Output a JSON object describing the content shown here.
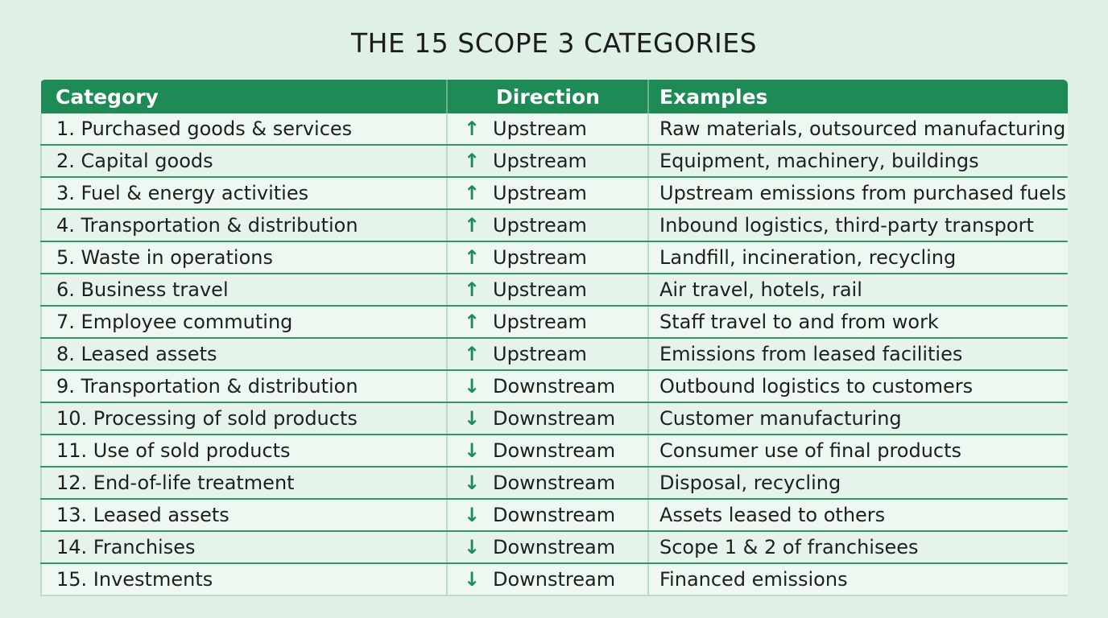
{
  "title": "THE 15 SCOPE 3 CATEGORIES",
  "colors": {
    "accent": "#1e8a55",
    "background": "#dff0e5"
  },
  "table": {
    "headers": [
      "Category",
      "Direction",
      "Examples"
    ],
    "rows": [
      {
        "category": "1. Purchased goods & services",
        "arrow": "↑",
        "arrow_icon": "arrow-up-icon",
        "direction": "Upstream",
        "examples": "Raw materials, outsourced manufacturing"
      },
      {
        "category": "2. Capital goods",
        "arrow": "↑",
        "arrow_icon": "arrow-up-icon",
        "direction": "Upstream",
        "examples": "Equipment, machinery, buildings"
      },
      {
        "category": "3. Fuel & energy activities",
        "arrow": "↑",
        "arrow_icon": "arrow-up-icon",
        "direction": "Upstream",
        "examples": "Upstream emissions from purchased fuels"
      },
      {
        "category": "4. Transportation & distribution",
        "arrow": "↑",
        "arrow_icon": "arrow-up-icon",
        "direction": "Upstream",
        "examples": "Inbound logistics, third-party transport"
      },
      {
        "category": "5. Waste in operations",
        "arrow": "↑",
        "arrow_icon": "arrow-up-icon",
        "direction": "Upstream",
        "examples": "Landfill, incineration, recycling"
      },
      {
        "category": "6. Business travel",
        "arrow": "↑",
        "arrow_icon": "arrow-up-icon",
        "direction": "Upstream",
        "examples": "Air travel, hotels, rail"
      },
      {
        "category": "7. Employee commuting",
        "arrow": "↑",
        "arrow_icon": "arrow-up-icon",
        "direction": "Upstream",
        "examples": "Staff travel to and from work"
      },
      {
        "category": "8. Leased assets",
        "arrow": "↑",
        "arrow_icon": "arrow-up-icon",
        "direction": "Upstream",
        "examples": "Emissions from leased facilities"
      },
      {
        "category": "9. Transportation & distribution",
        "arrow": "↓",
        "arrow_icon": "arrow-down-icon",
        "direction": "Downstream",
        "examples": "Outbound logistics to customers"
      },
      {
        "category": "10. Processing of sold products",
        "arrow": "↓",
        "arrow_icon": "arrow-down-icon",
        "direction": "Downstream",
        "examples": "Customer manufacturing"
      },
      {
        "category": "11. Use of sold products",
        "arrow": "↓",
        "arrow_icon": "arrow-down-icon",
        "direction": "Downstream",
        "examples": "Consumer use of final products"
      },
      {
        "category": "12. End-of-life treatment",
        "arrow": "↓",
        "arrow_icon": "arrow-down-icon",
        "direction": "Downstream",
        "examples": "Disposal, recycling"
      },
      {
        "category": "13. Leased assets",
        "arrow": "↓",
        "arrow_icon": "arrow-down-icon",
        "direction": "Downstream",
        "examples": "Assets leased to others"
      },
      {
        "category": "14. Franchises",
        "arrow": "↓",
        "arrow_icon": "arrow-down-icon",
        "direction": "Downstream",
        "examples": "Scope 1 & 2 of franchisees"
      },
      {
        "category": "15. Investments",
        "arrow": "↓",
        "arrow_icon": "arrow-down-icon",
        "direction": "Downstream",
        "examples": "Financed emissions"
      }
    ]
  }
}
